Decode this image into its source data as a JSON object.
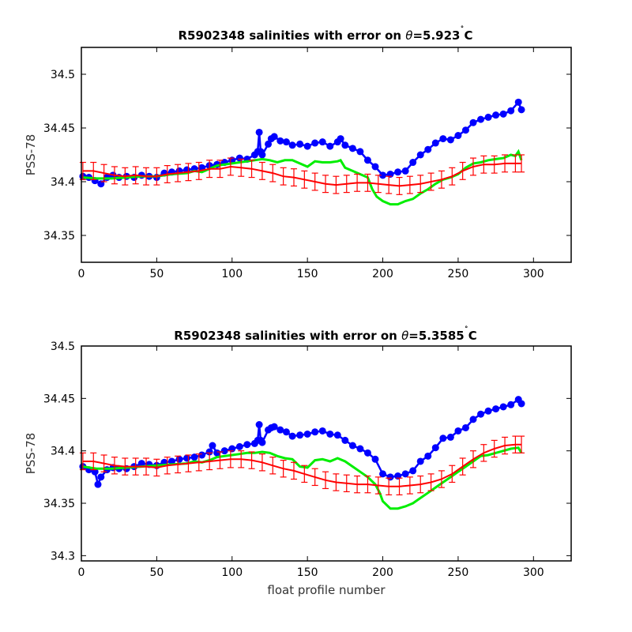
{
  "chart_data": [
    {
      "type": "line",
      "title": "R5902348 salinities with error on θ=5.923˚C",
      "title_parts": {
        "prefix": "R5902348 salinities with error on ",
        "symbol": "θ",
        "value": "=5.923",
        "degree": "˚",
        "unit": "C"
      },
      "xlabel": "",
      "ylabel": "PSS-78",
      "xlim": [
        0,
        325
      ],
      "ylim": [
        34.325,
        34.525
      ],
      "xticks": [
        "0",
        "50",
        "100",
        "150",
        "200",
        "250",
        "300"
      ],
      "yticks": [
        "34.35",
        "34.4",
        "34.45",
        "34.5"
      ],
      "grid": false,
      "series": [
        {
          "color": "#0000ff",
          "style": "line+markers",
          "x": [
            1,
            5,
            9,
            13,
            17,
            21,
            25,
            30,
            35,
            40,
            45,
            50,
            55,
            60,
            65,
            70,
            75,
            80,
            85,
            90,
            95,
            100,
            105,
            110,
            115,
            117,
            118,
            119,
            120,
            124,
            126,
            128,
            132,
            136,
            140,
            145,
            150,
            155,
            160,
            165,
            170,
            172,
            175,
            180,
            185,
            190,
            195,
            200,
            205,
            210,
            215,
            220,
            225,
            230,
            235,
            240,
            245,
            250,
            255,
            260,
            265,
            270,
            275,
            280,
            285,
            290,
            292
          ],
          "y": [
            34.405,
            34.404,
            34.401,
            34.398,
            34.404,
            34.406,
            34.404,
            34.405,
            34.404,
            34.406,
            34.405,
            34.404,
            34.408,
            34.409,
            34.41,
            34.411,
            34.412,
            34.413,
            34.415,
            34.416,
            34.418,
            34.42,
            34.422,
            34.421,
            34.425,
            34.428,
            34.446,
            34.428,
            34.425,
            34.435,
            34.44,
            34.442,
            34.438,
            34.437,
            34.434,
            34.435,
            34.433,
            34.436,
            34.437,
            34.433,
            34.437,
            34.44,
            34.434,
            34.431,
            34.428,
            34.42,
            34.414,
            34.406,
            34.407,
            34.409,
            34.41,
            34.418,
            34.425,
            34.43,
            34.436,
            34.44,
            34.439,
            34.443,
            34.448,
            34.455,
            34.458,
            34.46,
            34.462,
            34.463,
            34.466,
            34.474,
            34.467
          ]
        },
        {
          "color": "#00ee00",
          "style": "line",
          "x": [
            1,
            10,
            20,
            30,
            40,
            50,
            60,
            70,
            75,
            80,
            85,
            90,
            95,
            100,
            105,
            110,
            115,
            120,
            125,
            130,
            135,
            140,
            145,
            150,
            155,
            160,
            165,
            170,
            172,
            175,
            180,
            185,
            190,
            193,
            196,
            200,
            205,
            210,
            215,
            220,
            225,
            230,
            235,
            240,
            245,
            250,
            255,
            260,
            265,
            270,
            275,
            280,
            285,
            288,
            290,
            292
          ],
          "y": [
            34.404,
            34.403,
            34.403,
            34.404,
            34.405,
            34.405,
            34.407,
            34.408,
            34.41,
            34.409,
            34.412,
            34.415,
            34.416,
            34.417,
            34.418,
            34.419,
            34.42,
            34.421,
            34.42,
            34.418,
            34.42,
            34.42,
            34.417,
            34.414,
            34.419,
            34.418,
            34.418,
            34.419,
            34.42,
            34.413,
            34.41,
            34.407,
            34.404,
            34.393,
            34.386,
            34.382,
            34.379,
            34.379,
            34.382,
            34.384,
            34.389,
            34.393,
            34.398,
            34.402,
            34.404,
            34.407,
            34.413,
            34.417,
            34.418,
            34.42,
            34.421,
            34.422,
            34.425,
            34.424,
            34.428,
            34.42
          ]
        },
        {
          "color": "#ff0000",
          "style": "errorbars",
          "error": 0.008,
          "x": [
            1,
            8,
            15,
            22,
            29,
            36,
            43,
            50,
            57,
            64,
            71,
            78,
            85,
            92,
            99,
            106,
            113,
            120,
            127,
            134,
            141,
            148,
            155,
            162,
            169,
            176,
            183,
            190,
            197,
            204,
            211,
            218,
            225,
            232,
            239,
            246,
            253,
            260,
            267,
            274,
            281,
            288,
            292
          ],
          "y": [
            34.41,
            34.41,
            34.408,
            34.406,
            34.405,
            34.406,
            34.405,
            34.405,
            34.407,
            34.408,
            34.409,
            34.41,
            34.412,
            34.412,
            34.414,
            34.413,
            34.412,
            34.41,
            34.408,
            34.405,
            34.404,
            34.402,
            34.4,
            34.398,
            34.397,
            34.398,
            34.399,
            34.399,
            34.398,
            34.397,
            34.396,
            34.397,
            34.398,
            34.4,
            34.402,
            34.405,
            34.41,
            34.414,
            34.416,
            34.416,
            34.417,
            34.417,
            34.417
          ]
        }
      ]
    },
    {
      "type": "line",
      "title": "R5902348 salinities with error on θ=5.3585˚C",
      "title_parts": {
        "prefix": "R5902348 salinities with error on ",
        "symbol": "θ",
        "value": "=5.3585",
        "degree": "˚",
        "unit": "C"
      },
      "xlabel": "float profile number",
      "ylabel": "PSS-78",
      "xlim": [
        0,
        325
      ],
      "ylim": [
        34.295,
        34.5
      ],
      "xticks": [
        "0",
        "50",
        "100",
        "150",
        "200",
        "250",
        "300"
      ],
      "yticks": [
        "34.3",
        "34.35",
        "34.4",
        "34.45",
        "34.5"
      ],
      "grid": false,
      "series": [
        {
          "color": "#0000ff",
          "style": "line+markers",
          "x": [
            1,
            5,
            9,
            11,
            13,
            17,
            21,
            25,
            30,
            35,
            40,
            45,
            50,
            55,
            60,
            65,
            70,
            75,
            80,
            85,
            87,
            90,
            95,
            100,
            105,
            110,
            115,
            117,
            118,
            119,
            120,
            124,
            126,
            128,
            132,
            136,
            140,
            145,
            150,
            155,
            160,
            165,
            170,
            175,
            180,
            185,
            190,
            195,
            200,
            205,
            210,
            215,
            220,
            225,
            230,
            235,
            240,
            245,
            250,
            255,
            260,
            265,
            270,
            275,
            280,
            285,
            290,
            292
          ],
          "y": [
            34.385,
            34.382,
            34.38,
            34.368,
            34.375,
            34.382,
            34.384,
            34.383,
            34.383,
            34.385,
            34.388,
            34.387,
            34.386,
            34.389,
            34.39,
            34.392,
            34.393,
            34.394,
            34.396,
            34.399,
            34.405,
            34.398,
            34.4,
            34.402,
            34.404,
            34.406,
            34.407,
            34.41,
            34.425,
            34.41,
            34.408,
            34.42,
            34.422,
            34.423,
            34.42,
            34.418,
            34.414,
            34.415,
            34.416,
            34.418,
            34.419,
            34.416,
            34.415,
            34.41,
            34.405,
            34.402,
            34.398,
            34.392,
            34.378,
            34.375,
            34.376,
            34.378,
            34.381,
            34.39,
            34.395,
            34.403,
            34.412,
            34.413,
            34.419,
            34.422,
            34.43,
            34.435,
            34.438,
            34.44,
            34.442,
            34.444,
            34.449,
            34.445
          ]
        },
        {
          "color": "#00ee00",
          "style": "line",
          "x": [
            1,
            10,
            20,
            30,
            40,
            50,
            60,
            70,
            75,
            80,
            85,
            90,
            95,
            100,
            105,
            110,
            115,
            120,
            125,
            130,
            135,
            140,
            145,
            150,
            155,
            160,
            165,
            170,
            175,
            180,
            185,
            190,
            195,
            198,
            200,
            205,
            210,
            215,
            220,
            225,
            230,
            235,
            240,
            245,
            250,
            255,
            260,
            265,
            270,
            275,
            280,
            285,
            290,
            292
          ],
          "y": [
            34.385,
            34.383,
            34.383,
            34.384,
            34.385,
            34.386,
            34.387,
            34.388,
            34.39,
            34.389,
            34.391,
            34.394,
            34.395,
            34.396,
            34.397,
            34.398,
            34.398,
            34.399,
            34.398,
            34.395,
            34.393,
            34.392,
            34.385,
            34.384,
            34.391,
            34.392,
            34.39,
            34.393,
            34.39,
            34.385,
            34.38,
            34.375,
            34.368,
            34.36,
            34.352,
            34.345,
            34.345,
            34.347,
            34.35,
            34.355,
            34.36,
            34.365,
            34.37,
            34.375,
            34.38,
            34.385,
            34.39,
            34.395,
            34.396,
            34.398,
            34.4,
            34.402,
            34.403,
            34.398
          ]
        },
        {
          "color": "#ff0000",
          "style": "errorbars",
          "error": 0.008,
          "x": [
            1,
            8,
            15,
            22,
            29,
            36,
            43,
            50,
            57,
            64,
            71,
            78,
            85,
            92,
            99,
            106,
            113,
            120,
            127,
            134,
            141,
            148,
            155,
            162,
            169,
            176,
            183,
            190,
            197,
            204,
            211,
            218,
            225,
            232,
            239,
            246,
            253,
            260,
            267,
            274,
            281,
            288,
            292
          ],
          "y": [
            34.39,
            34.39,
            34.388,
            34.386,
            34.385,
            34.385,
            34.385,
            34.384,
            34.386,
            34.387,
            34.388,
            34.389,
            34.39,
            34.391,
            34.392,
            34.392,
            34.391,
            34.389,
            34.386,
            34.383,
            34.381,
            34.378,
            34.375,
            34.372,
            34.37,
            34.369,
            34.368,
            34.368,
            34.367,
            34.366,
            34.366,
            34.367,
            34.368,
            34.37,
            34.373,
            34.378,
            34.385,
            34.392,
            34.398,
            34.402,
            34.405,
            34.406,
            34.406
          ]
        }
      ]
    }
  ]
}
